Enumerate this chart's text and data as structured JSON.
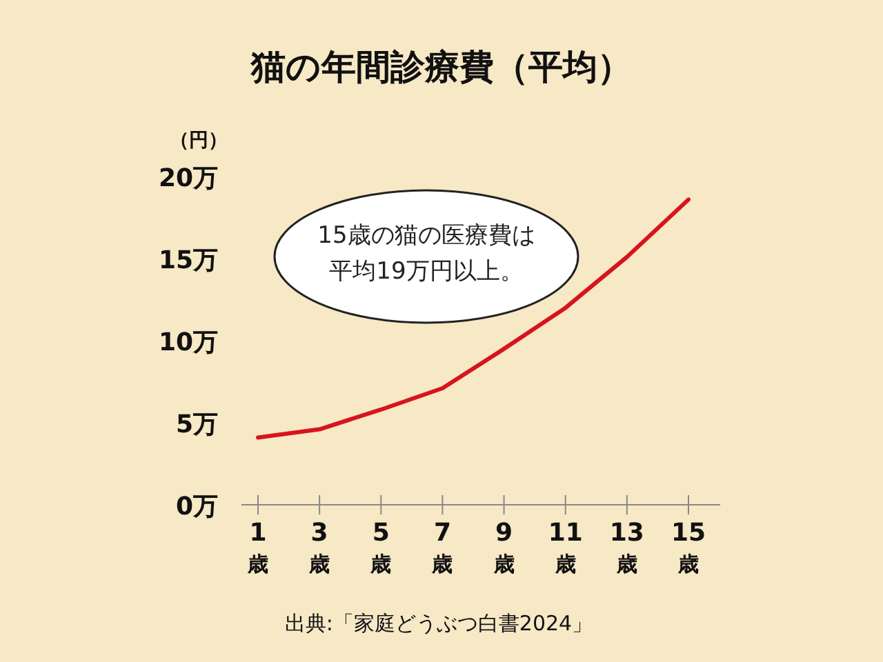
{
  "chart_data": {
    "type": "line",
    "title": "猫の年間診療費（平均）",
    "ylabel": "（円）",
    "categories": [
      "1歳",
      "3歳",
      "5歳",
      "7歳",
      "9歳",
      "11歳",
      "13歳",
      "15歳"
    ],
    "series": [
      {
        "color": "#d7141e",
        "values": [
          4.1,
          4.6,
          5.8,
          7.1,
          9.5,
          12,
          15.1,
          18.6
        ]
      }
    ],
    "ylim": [
      0,
      20
    ],
    "yticks": [
      {
        "value": 0,
        "label": "0万"
      },
      {
        "value": 5,
        "label": "5万"
      },
      {
        "value": 10,
        "label": "10万"
      },
      {
        "value": 15,
        "label": "15万"
      },
      {
        "value": 20,
        "label": "20万"
      }
    ],
    "grid": false,
    "marker": "none",
    "line_style": "solid",
    "annotations": [
      "15歳の猫の医療費は",
      "平均19万円以上。",
      "出典:「家庭どうぶつ白書2024」"
    ]
  }
}
